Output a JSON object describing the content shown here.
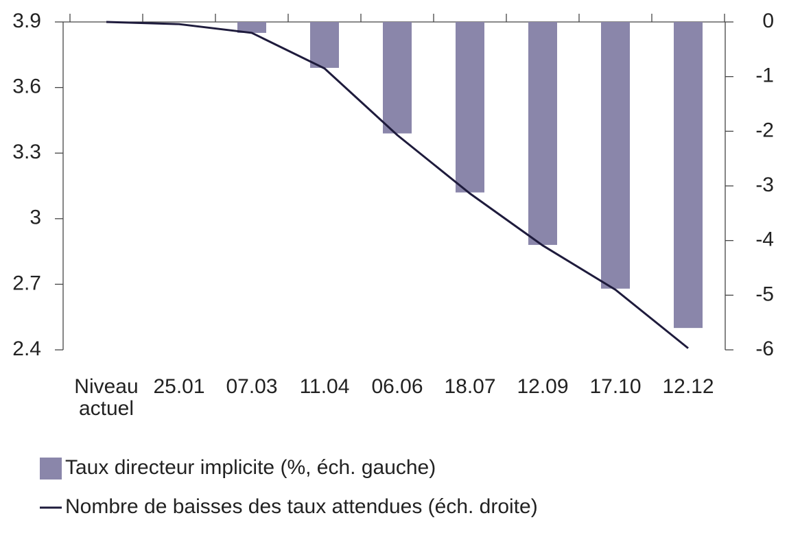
{
  "chart_data": {
    "type": "bar-line",
    "categories": [
      "Niveau actuel",
      "25.01",
      "07.03",
      "11.04",
      "06.06",
      "18.07",
      "12.09",
      "17.10",
      "12.12"
    ],
    "series": [
      {
        "name": "Taux directeur implicite (%, éch. gauche)",
        "type": "bar",
        "color": "#8a86aa",
        "values": [
          3.9,
          3.9,
          3.85,
          3.69,
          3.39,
          3.12,
          2.88,
          2.68,
          2.5
        ]
      },
      {
        "name": "Nombre de baisses des taux attendues (éch. droite)",
        "type": "line",
        "color": "#1e1b3c",
        "axis": "y2",
        "values": [
          0,
          -0.04,
          -0.2,
          -0.85,
          -2.07,
          -3.14,
          -4.09,
          -4.9,
          -5.97
        ]
      }
    ],
    "ylim": [
      2.4,
      3.9
    ],
    "yticks": [
      2.4,
      2.7,
      3,
      3.3,
      3.6,
      3.9
    ],
    "y2lim": [
      -6,
      0
    ],
    "y2ticks": [
      -6,
      -5,
      -4,
      -3,
      -2,
      -1,
      0
    ],
    "legend": "bottom-left"
  }
}
